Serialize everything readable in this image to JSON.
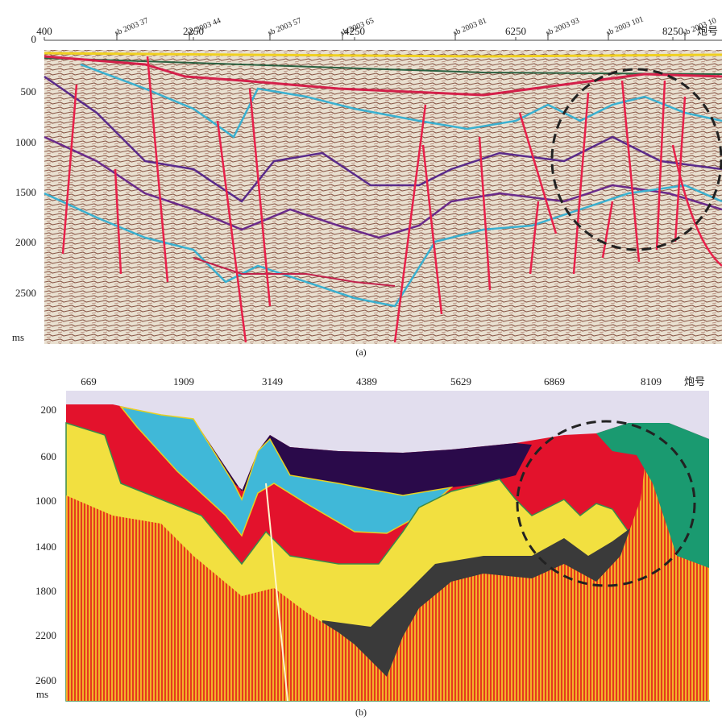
{
  "panel_a": {
    "x_ticks": [
      "400",
      "2250",
      "4250",
      "6250",
      "8250"
    ],
    "x_axis_label": "炮号",
    "wells": [
      "sb 2003 37",
      "sb 2003 44",
      "sb 2003 57",
      "sb 2003 65",
      "sb 2003 81",
      "sb 2003 93",
      "sb 2003 101",
      "sb 2003 10"
    ],
    "y_ticks": [
      "0",
      "500",
      "1000",
      "1500",
      "2000",
      "2500"
    ],
    "y_unit": "ms",
    "caption": "(a)"
  },
  "panel_b": {
    "x_ticks": [
      "669",
      "1909",
      "3149",
      "4389",
      "5629",
      "6869",
      "8109"
    ],
    "x_axis_label": "炮号",
    "y_ticks": [
      "200",
      "600",
      "1000",
      "1400",
      "1800",
      "2200",
      "2600"
    ],
    "y_unit": "ms",
    "caption": "(b)"
  }
}
